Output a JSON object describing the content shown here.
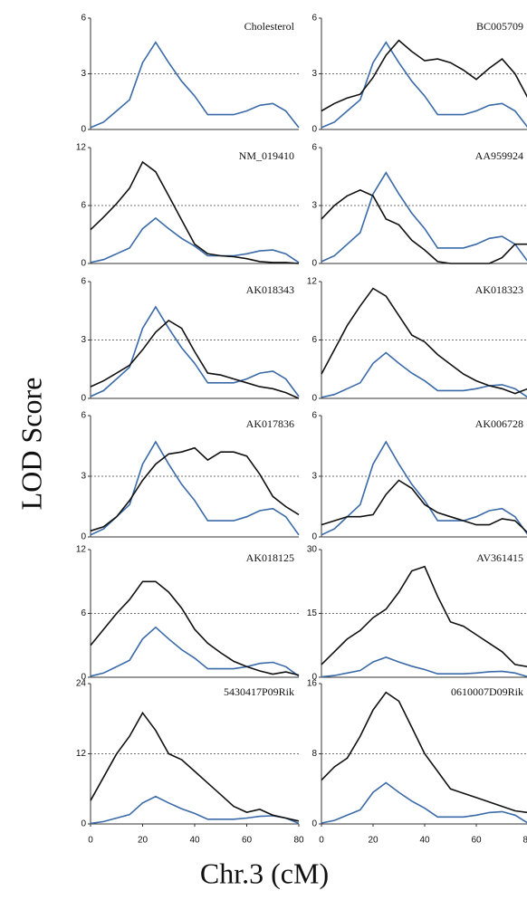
{
  "y_axis_label": "LOD Score",
  "x_axis_label": "Chr.3 (cM)",
  "chart_data": [
    {
      "type": "line",
      "title": "Cholesterol",
      "x": [
        0,
        5,
        10,
        15,
        20,
        25,
        30,
        35,
        40,
        45,
        50,
        55,
        60,
        65,
        70,
        75,
        80
      ],
      "xlim": [
        0,
        80
      ],
      "ylim": [
        0,
        6
      ],
      "yticks": [
        0,
        3,
        6
      ],
      "grid": true,
      "series": [
        {
          "color": "#3a6aa8",
          "values": [
            0.1,
            0.4,
            1.0,
            1.6,
            3.6,
            4.7,
            3.6,
            2.6,
            1.8,
            0.8,
            0.8,
            0.8,
            1.0,
            1.3,
            1.4,
            1.0,
            0.1
          ]
        }
      ]
    },
    {
      "type": "line",
      "title": "BC005709",
      "x": [
        0,
        5,
        10,
        15,
        20,
        25,
        30,
        35,
        40,
        45,
        50,
        55,
        60,
        65,
        70,
        75,
        80
      ],
      "xlim": [
        0,
        80
      ],
      "ylim": [
        0,
        6
      ],
      "yticks": [
        0,
        3,
        6
      ],
      "grid": true,
      "series": [
        {
          "color": "#3a6aa8",
          "values": [
            0.1,
            0.4,
            1.0,
            1.6,
            3.6,
            4.7,
            3.6,
            2.6,
            1.8,
            0.8,
            0.8,
            0.8,
            1.0,
            1.3,
            1.4,
            1.0,
            0.1
          ]
        },
        {
          "color": "#111111",
          "values": [
            1.0,
            1.4,
            1.7,
            1.9,
            2.8,
            4.0,
            4.8,
            4.2,
            3.7,
            3.8,
            3.6,
            3.2,
            2.7,
            3.3,
            3.8,
            3.0,
            1.7
          ]
        }
      ]
    },
    {
      "type": "line",
      "title": "NM_019410",
      "x": [
        0,
        5,
        10,
        15,
        20,
        25,
        30,
        35,
        40,
        45,
        50,
        55,
        60,
        65,
        70,
        75,
        80
      ],
      "xlim": [
        0,
        80
      ],
      "ylim": [
        0,
        12
      ],
      "yticks": [
        0,
        6,
        12
      ],
      "grid": true,
      "series": [
        {
          "color": "#3a6aa8",
          "values": [
            0.1,
            0.4,
            1.0,
            1.6,
            3.6,
            4.7,
            3.6,
            2.6,
            1.8,
            0.8,
            0.8,
            0.8,
            1.0,
            1.3,
            1.4,
            1.0,
            0.1
          ]
        },
        {
          "color": "#111111",
          "values": [
            3.5,
            4.8,
            6.2,
            7.8,
            10.5,
            9.5,
            7.0,
            4.5,
            2.0,
            1.0,
            0.8,
            0.7,
            0.5,
            0.2,
            0.1,
            0.1,
            0.0
          ]
        }
      ]
    },
    {
      "type": "line",
      "title": "AA959924",
      "x": [
        0,
        5,
        10,
        15,
        20,
        25,
        30,
        35,
        40,
        45,
        50,
        55,
        60,
        65,
        70,
        75,
        80
      ],
      "xlim": [
        0,
        80
      ],
      "ylim": [
        0,
        6
      ],
      "yticks": [
        0,
        3,
        6
      ],
      "grid": true,
      "series": [
        {
          "color": "#3a6aa8",
          "values": [
            0.1,
            0.4,
            1.0,
            1.6,
            3.6,
            4.7,
            3.6,
            2.6,
            1.8,
            0.8,
            0.8,
            0.8,
            1.0,
            1.3,
            1.4,
            1.0,
            0.1
          ]
        },
        {
          "color": "#111111",
          "values": [
            2.3,
            3.0,
            3.5,
            3.8,
            3.5,
            2.3,
            2.0,
            1.2,
            0.7,
            0.1,
            0.0,
            0.0,
            0.0,
            0.0,
            0.3,
            1.0,
            1.0
          ]
        }
      ]
    },
    {
      "type": "line",
      "title": "AK018343",
      "x": [
        0,
        5,
        10,
        15,
        20,
        25,
        30,
        35,
        40,
        45,
        50,
        55,
        60,
        65,
        70,
        75,
        80
      ],
      "xlim": [
        0,
        80
      ],
      "ylim": [
        0,
        6
      ],
      "yticks": [
        0,
        3,
        6
      ],
      "grid": true,
      "series": [
        {
          "color": "#3a6aa8",
          "values": [
            0.1,
            0.4,
            1.0,
            1.6,
            3.6,
            4.7,
            3.6,
            2.6,
            1.8,
            0.8,
            0.8,
            0.8,
            1.0,
            1.3,
            1.4,
            1.0,
            0.1
          ]
        },
        {
          "color": "#111111",
          "values": [
            0.6,
            0.9,
            1.3,
            1.7,
            2.5,
            3.4,
            4.0,
            3.6,
            2.4,
            1.3,
            1.2,
            1.0,
            0.8,
            0.6,
            0.5,
            0.3,
            0.0
          ]
        }
      ]
    },
    {
      "type": "line",
      "title": "AK018323",
      "x": [
        0,
        5,
        10,
        15,
        20,
        25,
        30,
        35,
        40,
        45,
        50,
        55,
        60,
        65,
        70,
        75,
        80
      ],
      "xlim": [
        0,
        80
      ],
      "ylim": [
        0,
        12
      ],
      "yticks": [
        0,
        6,
        12
      ],
      "grid": true,
      "series": [
        {
          "color": "#3a6aa8",
          "values": [
            0.1,
            0.4,
            1.0,
            1.6,
            3.6,
            4.7,
            3.6,
            2.6,
            1.8,
            0.8,
            0.8,
            0.8,
            1.0,
            1.3,
            1.4,
            1.0,
            0.1
          ]
        },
        {
          "color": "#111111",
          "values": [
            2.5,
            5.0,
            7.5,
            9.5,
            11.3,
            10.5,
            8.5,
            6.5,
            5.8,
            4.5,
            3.5,
            2.5,
            1.8,
            1.3,
            1.0,
            0.5,
            1.0
          ]
        }
      ]
    },
    {
      "type": "line",
      "title": "AK017836",
      "x": [
        0,
        5,
        10,
        15,
        20,
        25,
        30,
        35,
        40,
        45,
        50,
        55,
        60,
        65,
        70,
        75,
        80
      ],
      "xlim": [
        0,
        80
      ],
      "ylim": [
        0,
        6
      ],
      "yticks": [
        0,
        3,
        6
      ],
      "grid": true,
      "series": [
        {
          "color": "#3a6aa8",
          "values": [
            0.1,
            0.4,
            1.0,
            1.6,
            3.6,
            4.7,
            3.6,
            2.6,
            1.8,
            0.8,
            0.8,
            0.8,
            1.0,
            1.3,
            1.4,
            1.0,
            0.1
          ]
        },
        {
          "color": "#111111",
          "values": [
            0.3,
            0.5,
            1.0,
            1.8,
            2.8,
            3.6,
            4.1,
            4.2,
            4.4,
            3.8,
            4.2,
            4.2,
            4.0,
            3.1,
            2.0,
            1.5,
            1.1
          ]
        }
      ]
    },
    {
      "type": "line",
      "title": "AK006728",
      "x": [
        0,
        5,
        10,
        15,
        20,
        25,
        30,
        35,
        40,
        45,
        50,
        55,
        60,
        65,
        70,
        75,
        80
      ],
      "xlim": [
        0,
        80
      ],
      "ylim": [
        0,
        6
      ],
      "yticks": [
        0,
        3,
        6
      ],
      "grid": true,
      "series": [
        {
          "color": "#3a6aa8",
          "values": [
            0.1,
            0.4,
            1.0,
            1.6,
            3.6,
            4.7,
            3.6,
            2.6,
            1.8,
            0.8,
            0.8,
            0.8,
            1.0,
            1.3,
            1.4,
            1.0,
            0.1
          ]
        },
        {
          "color": "#111111",
          "values": [
            0.6,
            0.8,
            1.0,
            1.0,
            1.1,
            2.1,
            2.8,
            2.4,
            1.6,
            1.2,
            1.0,
            0.8,
            0.6,
            0.6,
            0.9,
            0.8,
            0.2
          ]
        }
      ]
    },
    {
      "type": "line",
      "title": "AK018125",
      "x": [
        0,
        5,
        10,
        15,
        20,
        25,
        30,
        35,
        40,
        45,
        50,
        55,
        60,
        65,
        70,
        75,
        80
      ],
      "xlim": [
        0,
        80
      ],
      "ylim": [
        0,
        12
      ],
      "yticks": [
        0,
        6,
        12
      ],
      "grid": true,
      "series": [
        {
          "color": "#3a6aa8",
          "values": [
            0.1,
            0.4,
            1.0,
            1.6,
            3.6,
            4.7,
            3.6,
            2.6,
            1.8,
            0.8,
            0.8,
            0.8,
            1.0,
            1.3,
            1.4,
            1.0,
            0.1
          ]
        },
        {
          "color": "#111111",
          "values": [
            3.0,
            4.5,
            6.0,
            7.3,
            9.0,
            9.0,
            8.0,
            6.5,
            4.5,
            3.2,
            2.3,
            1.5,
            1.0,
            0.6,
            0.3,
            0.5,
            0.2
          ]
        }
      ]
    },
    {
      "type": "line",
      "title": "AV361415",
      "x": [
        0,
        5,
        10,
        15,
        20,
        25,
        30,
        35,
        40,
        45,
        50,
        55,
        60,
        65,
        70,
        75,
        80
      ],
      "xlim": [
        0,
        80
      ],
      "ylim": [
        0,
        30
      ],
      "yticks": [
        0,
        15,
        30
      ],
      "grid": true,
      "series": [
        {
          "color": "#3a6aa8",
          "values": [
            0.1,
            0.4,
            1.0,
            1.6,
            3.6,
            4.7,
            3.6,
            2.6,
            1.8,
            0.8,
            0.8,
            0.8,
            1.0,
            1.3,
            1.4,
            1.0,
            0.1
          ]
        },
        {
          "color": "#111111",
          "values": [
            3,
            6,
            9,
            11,
            14,
            16,
            20,
            25,
            26,
            19,
            13,
            12,
            10,
            8,
            6,
            3,
            2.5
          ]
        }
      ]
    },
    {
      "type": "line",
      "title": "5430417P09Rik",
      "x": [
        0,
        5,
        10,
        15,
        20,
        25,
        30,
        35,
        40,
        45,
        50,
        55,
        60,
        65,
        70,
        75,
        80
      ],
      "xlim": [
        0,
        80
      ],
      "xticks": [
        0,
        20,
        40,
        60,
        80
      ],
      "ylim": [
        0,
        24
      ],
      "yticks": [
        0,
        12,
        24
      ],
      "grid": true,
      "series": [
        {
          "color": "#3a6aa8",
          "values": [
            0.1,
            0.4,
            1.0,
            1.6,
            3.6,
            4.7,
            3.6,
            2.6,
            1.8,
            0.8,
            0.8,
            0.8,
            1.0,
            1.3,
            1.4,
            1.0,
            0.1
          ]
        },
        {
          "color": "#111111",
          "values": [
            4,
            8,
            12,
            15,
            19,
            16,
            12,
            11,
            9,
            7,
            5,
            3,
            2,
            2.5,
            1.5,
            1,
            0.5
          ]
        }
      ]
    },
    {
      "type": "line",
      "title": "0610007D09Rik",
      "x": [
        0,
        5,
        10,
        15,
        20,
        25,
        30,
        35,
        40,
        45,
        50,
        55,
        60,
        65,
        70,
        75,
        80
      ],
      "xlim": [
        0,
        80
      ],
      "xticks": [
        0,
        20,
        40,
        60,
        80
      ],
      "ylim": [
        0,
        16
      ],
      "yticks": [
        0,
        8,
        16
      ],
      "grid": true,
      "series": [
        {
          "color": "#3a6aa8",
          "values": [
            0.1,
            0.4,
            1.0,
            1.6,
            3.6,
            4.7,
            3.6,
            2.6,
            1.8,
            0.8,
            0.8,
            0.8,
            1.0,
            1.3,
            1.4,
            1.0,
            0.1
          ]
        },
        {
          "color": "#111111",
          "values": [
            5,
            6.5,
            7.5,
            10,
            13,
            15,
            14,
            11,
            8,
            6,
            4,
            3.5,
            3,
            2.5,
            2,
            1.5,
            1.3
          ]
        }
      ]
    }
  ]
}
